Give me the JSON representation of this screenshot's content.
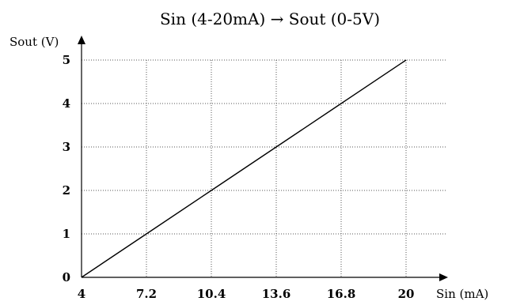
{
  "chart_data": {
    "type": "line",
    "title": "Sin (4-20mA)  → Sout (0-5V)",
    "xlabel": "Sin (mA)",
    "ylabel": "Sout (V)",
    "x_ticks": [
      "4",
      "7.2",
      "10.4",
      "13.6",
      "16.8",
      "20"
    ],
    "y_ticks": [
      "0",
      "1",
      "2",
      "3",
      "4",
      "5"
    ],
    "xlim": [
      4,
      20
    ],
    "ylim": [
      0,
      5
    ],
    "grid": true,
    "series": [
      {
        "x": [
          4,
          7.2,
          10.4,
          13.6,
          16.8,
          20
        ],
        "y": [
          0,
          1,
          2,
          3,
          4,
          5
        ]
      }
    ]
  }
}
